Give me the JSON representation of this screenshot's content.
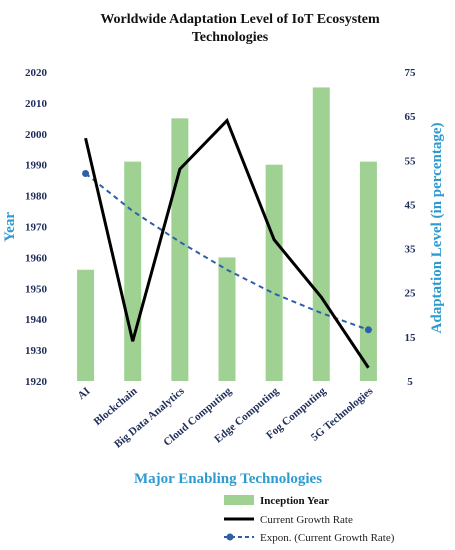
{
  "chart_data": {
    "type": "bar",
    "title_lines": [
      "Worldwide Adaptation Level of IoT Ecosystem",
      "Technologies"
    ],
    "xlabel": "Major Enabling Technologies",
    "ylabel_left": "Year",
    "ylabel_right": "Adaptation Level (in percentage)",
    "categories": [
      "AI",
      "Blockchain",
      "Big Data Analytics",
      "Cloud Computing",
      "Edge Computing",
      "Fog Computing",
      "5G Technologies"
    ],
    "left_axis": {
      "min": 1920,
      "max": 2020,
      "ticks": [
        1920,
        1930,
        1940,
        1950,
        1960,
        1970,
        1980,
        1990,
        2000,
        2010,
        2020
      ]
    },
    "right_axis": {
      "min": 5,
      "max": 75,
      "ticks": [
        5,
        15,
        25,
        35,
        45,
        55,
        65,
        75
      ]
    },
    "series": [
      {
        "name": "Inception Year",
        "kind": "bar",
        "axis": "left",
        "color": "#9fd193",
        "values": [
          1956,
          1991,
          2005,
          1960,
          1990,
          2015,
          1991
        ]
      },
      {
        "name": "Current Growth Rate",
        "kind": "line",
        "axis": "right",
        "color": "#000000",
        "values": [
          60,
          14,
          53,
          64,
          37,
          24,
          8
        ]
      },
      {
        "name": "Expon. (Current Growth Rate)",
        "kind": "trendline",
        "axis": "right",
        "color": "#2e5fa8",
        "values": [
          52,
          43.5,
          36.5,
          30.2,
          24.8,
          20.4,
          16.6
        ]
      }
    ],
    "legend_position": "bottom-right",
    "grid": false
  }
}
